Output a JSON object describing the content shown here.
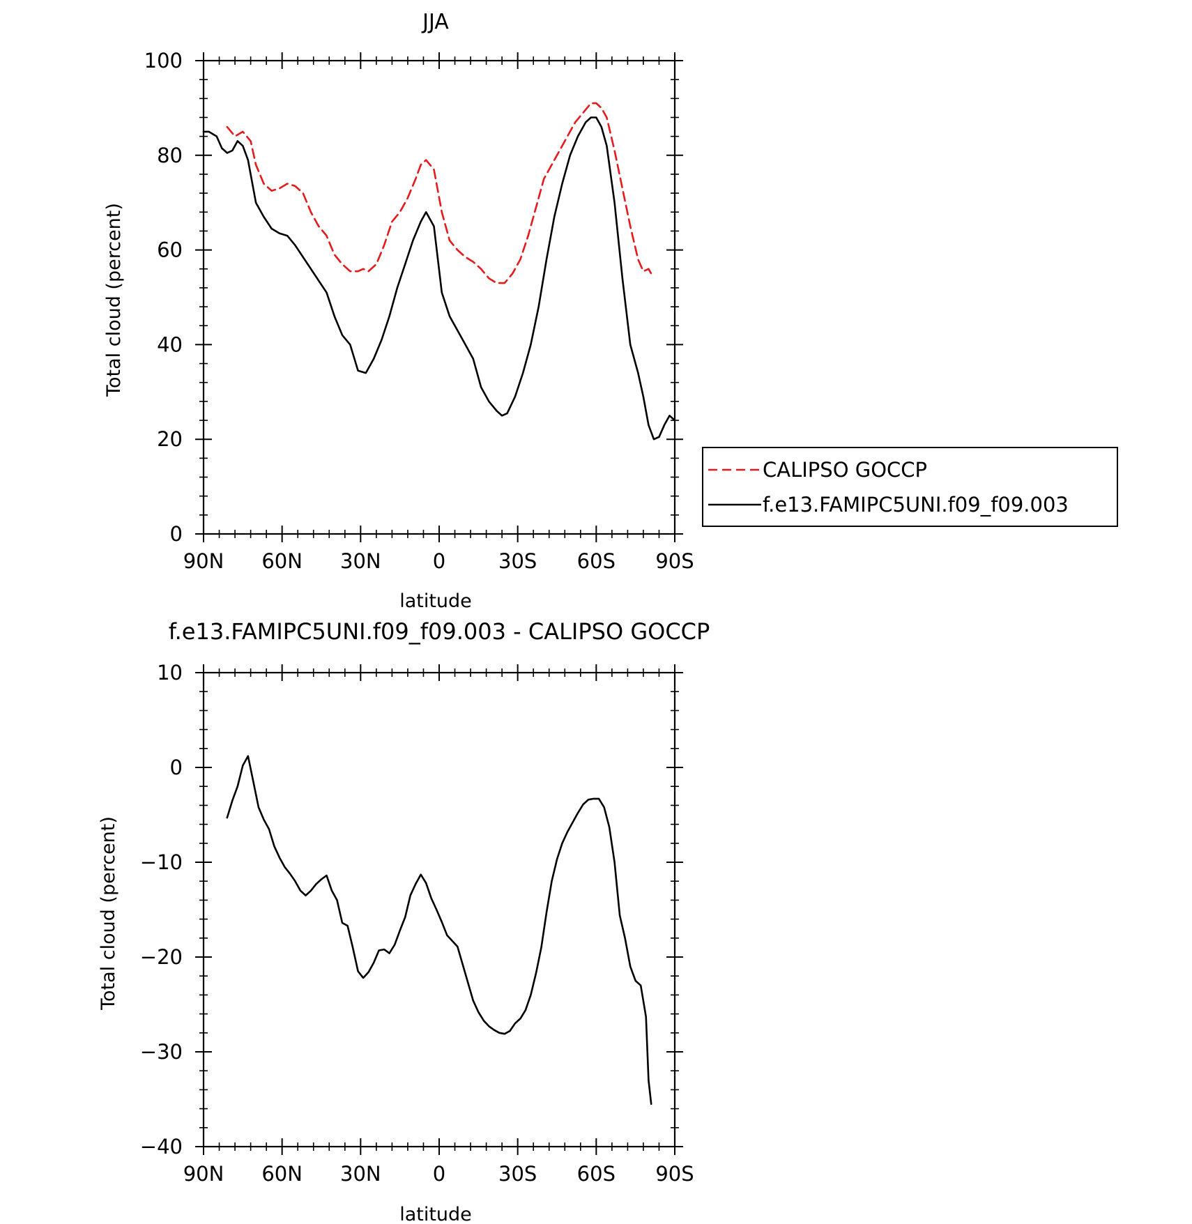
{
  "figure": {
    "panel_top_title": "JJA",
    "panel_bottom_title": "f.e13.FAMIPC5UNI.f09_f09.003 - CALIPSO GOCCP"
  },
  "colors": {
    "obs": "#e41a1c",
    "model": "#000000",
    "axis": "#000000"
  },
  "chart_data": [
    {
      "type": "line",
      "title": "JJA",
      "xlabel": "latitude",
      "ylabel": "Total cloud (percent)",
      "xlim": [
        90,
        -90
      ],
      "ylim": [
        0,
        100
      ],
      "xticks": [
        90,
        60,
        30,
        0,
        -30,
        -60,
        -90
      ],
      "xtick_labels": [
        "90N",
        "60N",
        "30N",
        "0",
        "30S",
        "60S",
        "90S"
      ],
      "yticks": [
        0,
        20,
        40,
        60,
        80,
        100
      ],
      "ytick_labels": [
        "0",
        "20",
        "40",
        "60",
        "80",
        "100"
      ],
      "legend": {
        "placement": "right"
      },
      "series": [
        {
          "name": "CALIPSO GOCCP",
          "style": "dashed",
          "color": "#e41a1c",
          "x": [
            81,
            78,
            75,
            72,
            70,
            67,
            64,
            61,
            58,
            55,
            52,
            49,
            46,
            43,
            40,
            37,
            34,
            31,
            29,
            27,
            24,
            21,
            18,
            15,
            12,
            9,
            7,
            5,
            2,
            -1,
            -4,
            -7,
            -10,
            -13,
            -16,
            -19,
            -22,
            -25,
            -28,
            -31,
            -34,
            -37,
            -40,
            -43,
            -46,
            -49,
            -52,
            -55,
            -58,
            -60,
            -62,
            -64,
            -67,
            -70,
            -73,
            -76,
            -78,
            -80,
            -81
          ],
          "y": [
            86,
            84,
            85,
            83,
            78,
            74,
            72.5,
            73,
            74,
            73.5,
            72,
            68,
            65,
            63,
            59,
            57,
            55.5,
            55.5,
            56,
            55.5,
            57,
            61,
            66,
            68,
            71,
            75,
            78,
            79,
            77,
            68,
            62,
            60,
            58.5,
            57.5,
            56,
            54,
            53,
            53,
            55,
            58,
            63,
            69,
            75,
            78,
            81,
            84,
            87,
            89,
            91,
            91,
            90,
            88,
            81,
            73,
            65,
            58,
            55.5,
            56,
            55
          ]
        },
        {
          "name": "f.e13.FAMIPC5UNI.f09_f09.003",
          "style": "solid",
          "color": "#000000",
          "x": [
            90,
            88,
            85,
            83,
            81,
            79,
            77,
            75,
            73,
            70,
            67,
            64,
            61,
            58,
            55,
            52,
            49,
            46,
            43,
            40,
            37,
            34,
            31,
            28,
            25,
            22,
            19,
            16,
            13,
            10,
            7,
            5,
            2,
            -1,
            -4,
            -7,
            -10,
            -13,
            -16,
            -19,
            -22,
            -24,
            -26,
            -29,
            -32,
            -35,
            -38,
            -41,
            -44,
            -47,
            -50,
            -53,
            -56,
            -58,
            -60,
            -62,
            -64,
            -67,
            -70,
            -73,
            -76,
            -78,
            -80,
            -82,
            -84,
            -86,
            -88,
            -90
          ],
          "y": [
            85,
            85,
            84,
            81.5,
            80.5,
            81,
            83,
            82,
            79,
            70,
            67,
            64.5,
            63.5,
            63,
            61,
            58.5,
            56,
            53.5,
            51,
            46,
            42,
            40,
            34.5,
            34,
            37,
            41,
            46,
            52,
            57,
            62,
            66,
            68,
            65,
            51,
            46,
            43,
            40,
            37,
            31,
            28,
            26,
            25,
            25.5,
            29,
            34,
            40,
            48,
            58,
            67,
            74,
            80,
            84,
            87,
            88,
            88,
            86,
            82,
            70,
            54,
            40,
            34,
            29,
            23,
            20,
            20.5,
            23,
            25,
            24
          ]
        }
      ]
    },
    {
      "type": "line",
      "title": "f.e13.FAMIPC5UNI.f09_f09.003 - CALIPSO GOCCP",
      "xlabel": "latitude",
      "ylabel": "Total cloud (percent)",
      "xlim": [
        90,
        -90
      ],
      "ylim": [
        -40,
        10
      ],
      "xticks": [
        90,
        60,
        30,
        0,
        -30,
        -60,
        -90
      ],
      "xtick_labels": [
        "90N",
        "60N",
        "30N",
        "0",
        "30S",
        "60S",
        "90S"
      ],
      "yticks": [
        -40,
        -30,
        -20,
        -10,
        0,
        10
      ],
      "ytick_labels": [
        "−40",
        "−30",
        "−20",
        "−10",
        "0",
        "10"
      ],
      "series": [
        {
          "name": "f.e13.FAMIPC5UNI.f09_f09.003 - CALIPSO GOCCP",
          "style": "solid",
          "color": "#000000",
          "x": [
            81,
            79,
            77,
            75,
            73,
            71,
            69,
            67,
            65,
            63,
            61,
            59,
            57,
            55,
            53,
            51,
            49,
            47,
            45,
            43,
            41,
            39,
            37,
            35,
            33,
            31,
            29,
            27,
            25,
            23,
            21,
            19,
            17,
            15,
            13,
            11,
            9,
            7,
            5,
            3,
            1,
            -1,
            -3,
            -5,
            -7,
            -9,
            -11,
            -13,
            -15,
            -17,
            -19,
            -21,
            -23,
            -25,
            -27,
            -29,
            -31,
            -33,
            -35,
            -37,
            -39,
            -41,
            -43,
            -45,
            -47,
            -49,
            -51,
            -53,
            -55,
            -57,
            -59,
            -61,
            -63,
            -65,
            -67,
            -69,
            -71,
            -73,
            -75,
            -77,
            -79,
            -80,
            -81
          ],
          "y": [
            -5.3,
            -3.5,
            -2,
            0.2,
            1.2,
            -1.5,
            -4.2,
            -5.5,
            -6.5,
            -8.3,
            -9.5,
            -10.5,
            -11.2,
            -12,
            -13,
            -13.5,
            -13,
            -12.3,
            -11.8,
            -11.4,
            -13,
            -14,
            -16.4,
            -16.7,
            -19,
            -21.5,
            -22.2,
            -21.6,
            -20.6,
            -19.3,
            -19.2,
            -19.6,
            -18.7,
            -17.2,
            -15.8,
            -13.5,
            -12.3,
            -11.3,
            -12.2,
            -13.8,
            -15,
            -16.3,
            -17.7,
            -18.3,
            -18.9,
            -20.8,
            -22.7,
            -24.6,
            -25.8,
            -26.7,
            -27.3,
            -27.7,
            -28,
            -28.1,
            -27.8,
            -27,
            -26.5,
            -25.6,
            -24,
            -21.7,
            -19,
            -15.3,
            -12,
            -9.7,
            -8,
            -6.8,
            -5.8,
            -4.8,
            -3.9,
            -3.4,
            -3.3,
            -3.3,
            -4.2,
            -6.3,
            -10,
            -15.6,
            -18,
            -21,
            -22.5,
            -23,
            -26.3,
            -33,
            -35.5
          ]
        }
      ]
    }
  ],
  "legend": {
    "entries": [
      {
        "label": "CALIPSO GOCCP"
      },
      {
        "label": "f.e13.FAMIPC5UNI.f09_f09.003"
      }
    ]
  }
}
